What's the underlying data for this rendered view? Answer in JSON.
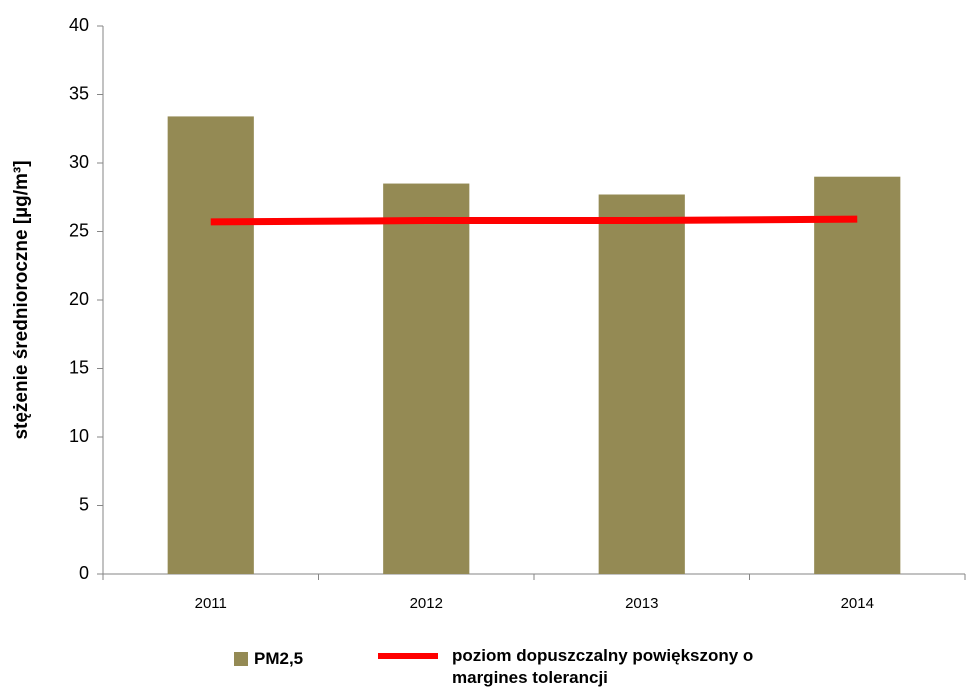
{
  "chart_data": {
    "type": "bar",
    "y_label": "stężenie średnioroczne [µg/m³]",
    "categories": [
      "2011",
      "2012",
      "2013",
      "2014"
    ],
    "series": [
      {
        "name": "PM2,5",
        "type": "bar",
        "color": "#948a54",
        "values": [
          33.4,
          28.5,
          27.7,
          29.0
        ]
      },
      {
        "name": "poziom dopuszczalny powiększony o margines tolerancji",
        "type": "line",
        "color": "#ff0000",
        "values": [
          25.7,
          25.8,
          25.8,
          25.9
        ]
      }
    ],
    "ylim": [
      0,
      40
    ],
    "yticks": [
      0,
      5,
      10,
      15,
      20,
      25,
      30,
      35,
      40
    ],
    "grid": false,
    "legend": "bottom"
  }
}
